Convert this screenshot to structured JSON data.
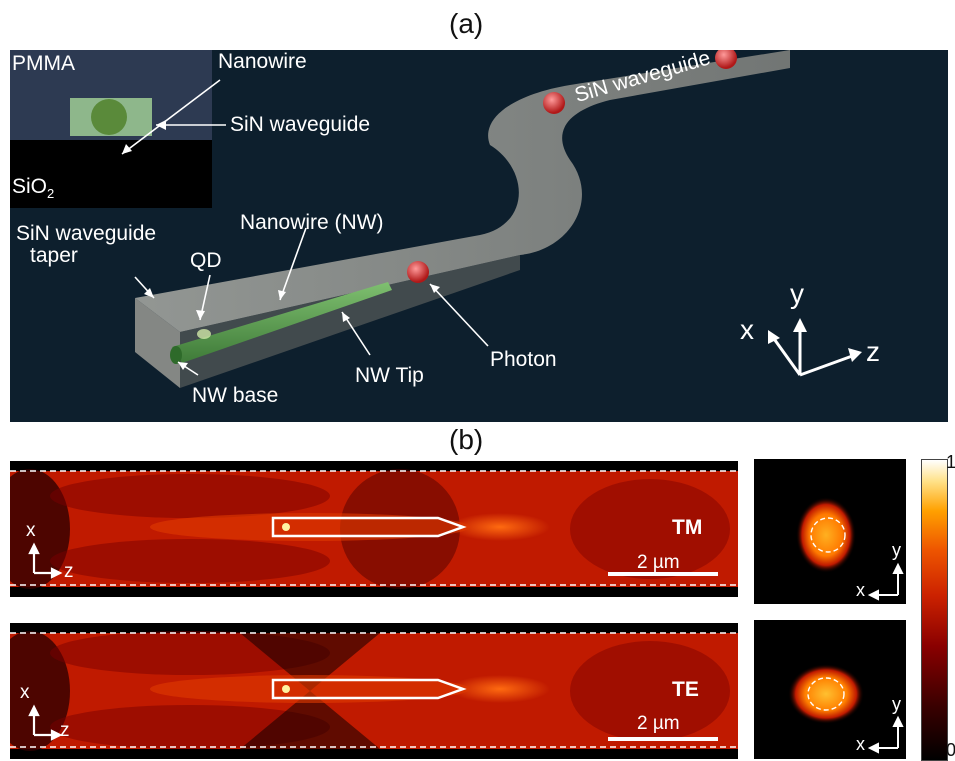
{
  "panel_a": {
    "label": "(a)",
    "inset": {
      "pmma": "PMMA",
      "nanowire": "Nanowire",
      "sin_waveguide": "SiN waveguide",
      "sio2": "SiO",
      "sio2_sub": "2"
    },
    "labels": {
      "sin_waveguide_taper_1": "SiN waveguide",
      "sin_waveguide_taper_2": "taper",
      "qd": "QD",
      "nanowire_nw": "Nanowire (NW)",
      "nw_base": "NW base",
      "nw_tip": "NW Tip",
      "photon": "Photon",
      "sin_waveguide_top": "SiN waveguide"
    },
    "axes": {
      "x": "x",
      "y": "y",
      "z": "z"
    }
  },
  "panel_b": {
    "label": "(b)",
    "tm": {
      "mode": "TM",
      "scale_bar": "2 µm",
      "axis_x": "x",
      "axis_z": "z",
      "cross_axis_y": "y",
      "cross_axis_x": "x"
    },
    "te": {
      "mode": "TE",
      "scale_bar": "2 µm",
      "axis_x": "x",
      "axis_z": "z",
      "cross_axis_y": "y",
      "cross_axis_x": "x"
    },
    "colorbar": {
      "max": "1",
      "min": "0"
    }
  },
  "colors": {
    "background_dark": "#0d1f2d",
    "nanowire_green": "#5aa050",
    "photon_red": "#d43030",
    "field_dark": "#000000",
    "field_bright": "#ffe28a"
  }
}
